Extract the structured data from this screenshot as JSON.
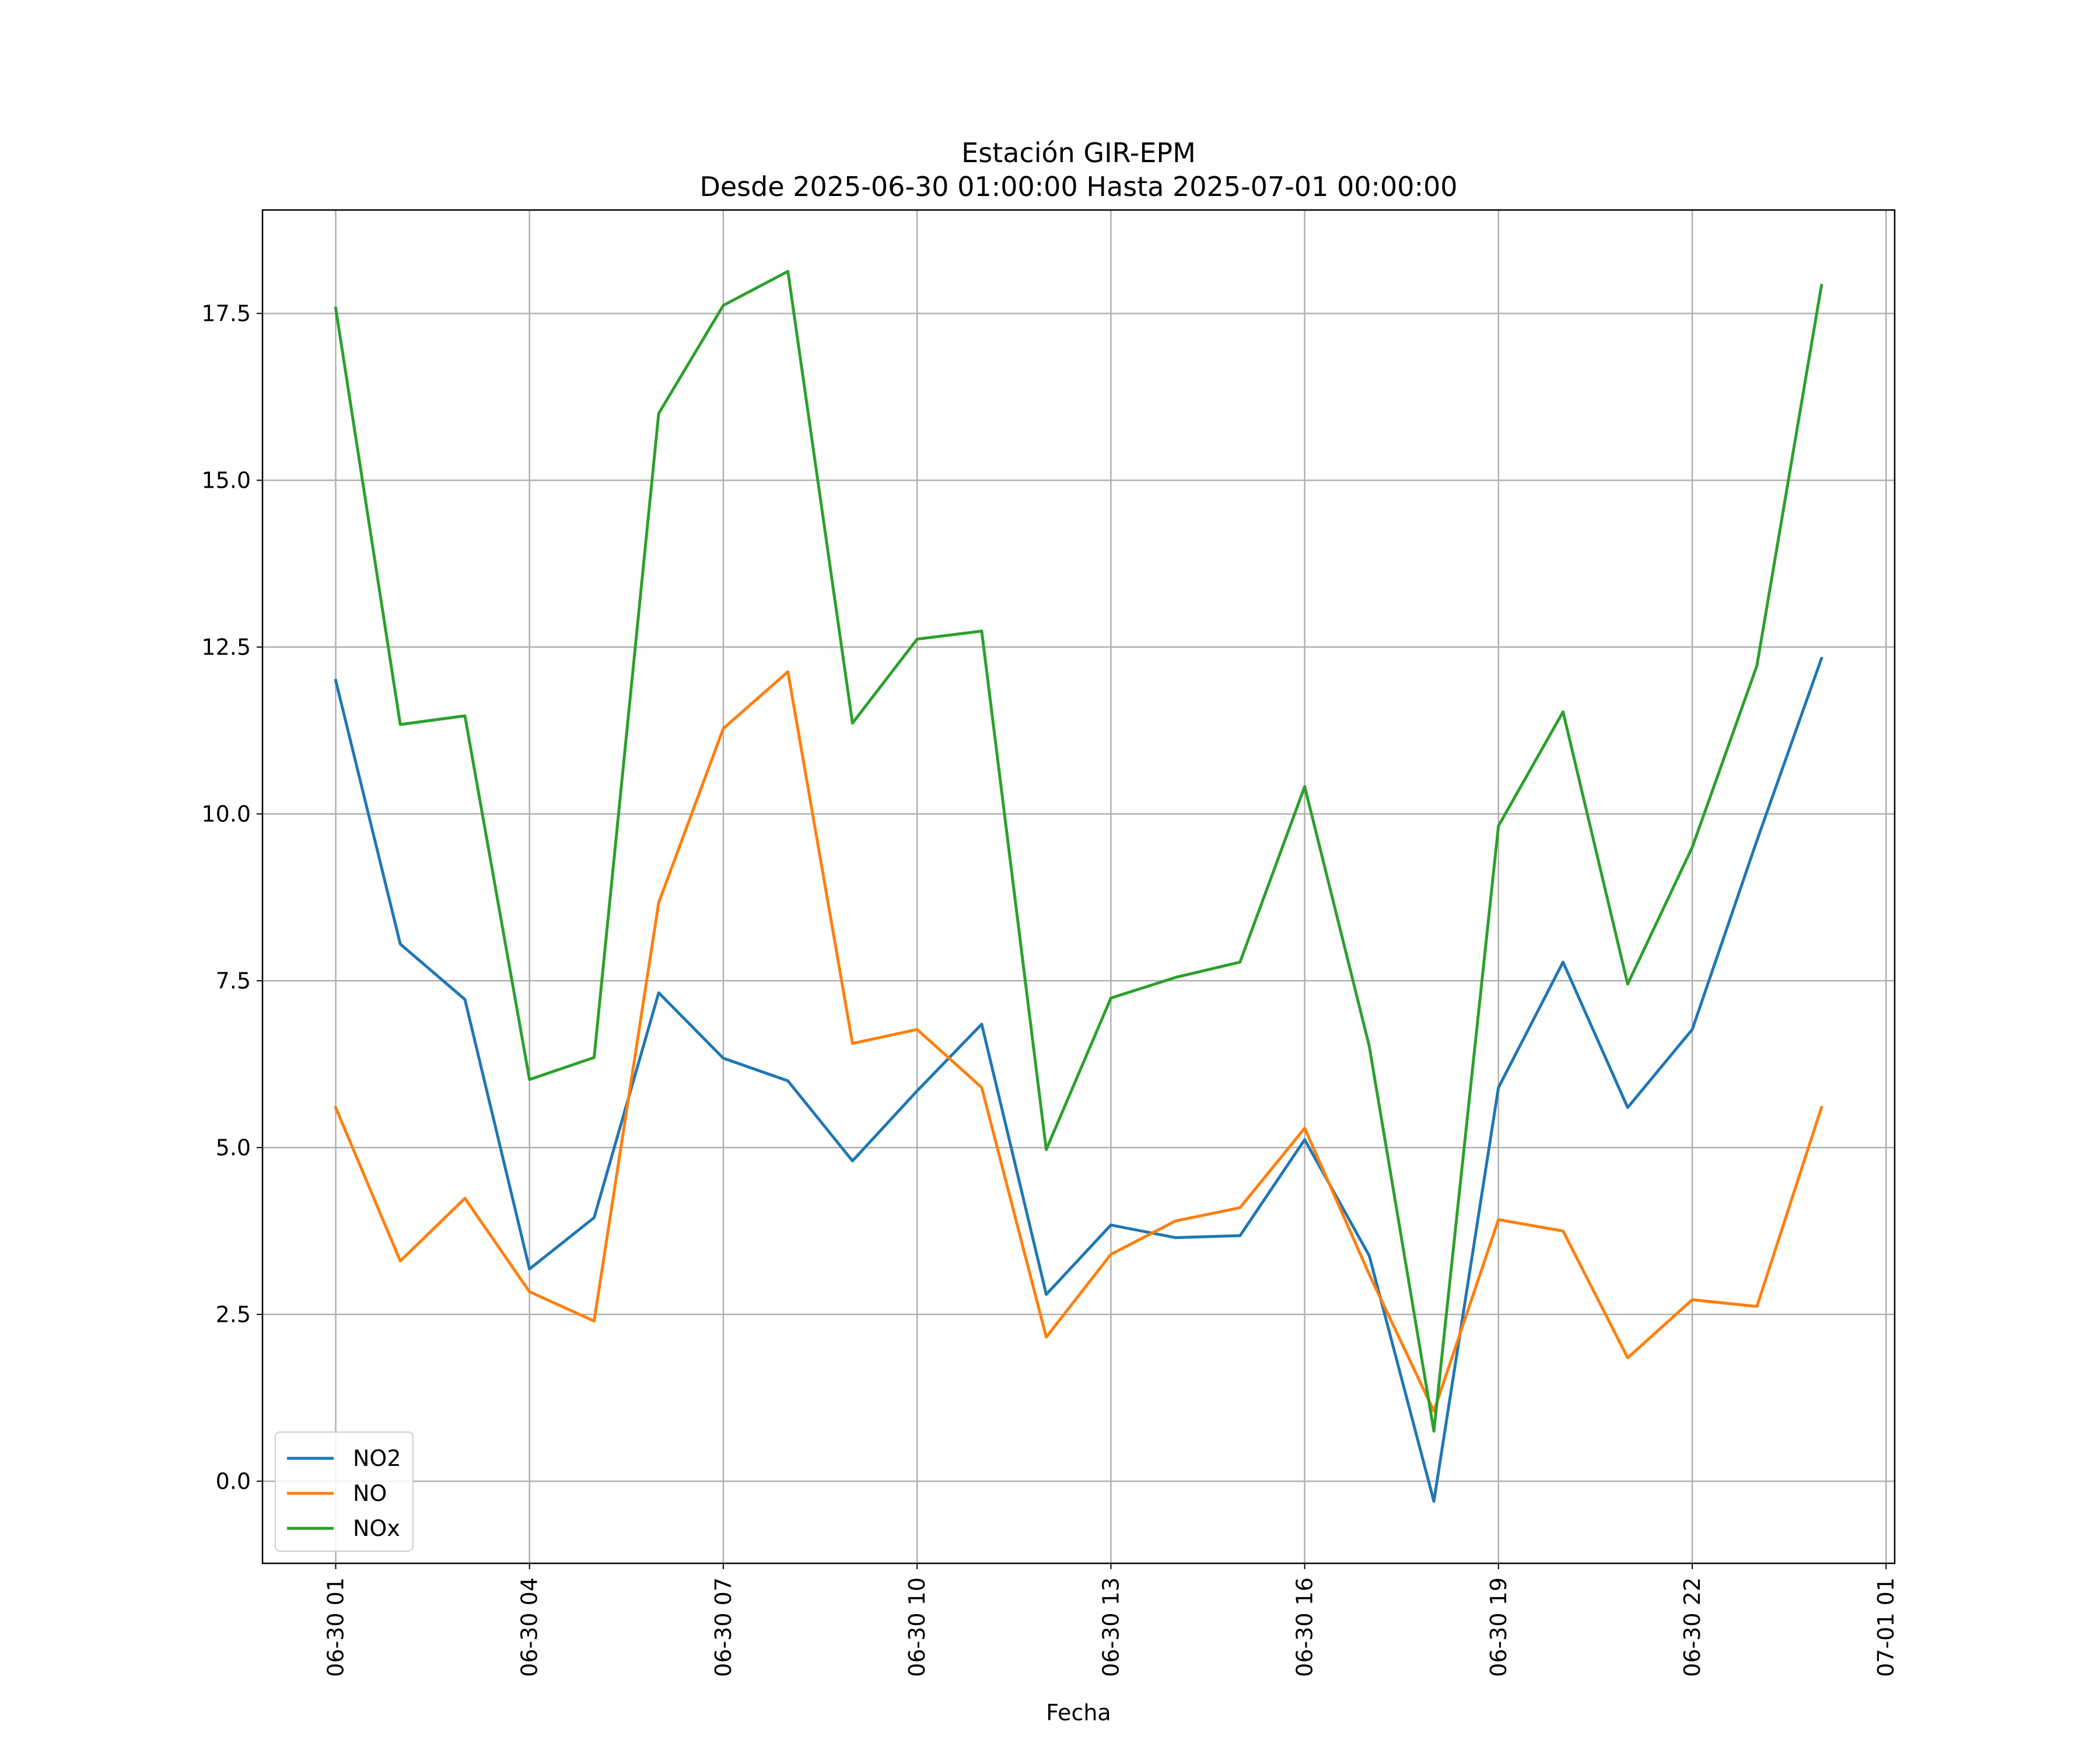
{
  "chart_data": {
    "type": "line",
    "title": "Estación GIR-EPM",
    "subtitle": "Desde 2025-06-30 01:00:00 Hasta 2025-07-01 00:00:00",
    "xlabel": "Fecha",
    "ylabel": "",
    "x": [
      "2025-06-30 01:00",
      "2025-06-30 02:00",
      "2025-06-30 03:00",
      "2025-06-30 04:00",
      "2025-06-30 05:00",
      "2025-06-30 06:00",
      "2025-06-30 07:00",
      "2025-06-30 08:00",
      "2025-06-30 09:00",
      "2025-06-30 10:00",
      "2025-06-30 11:00",
      "2025-06-30 12:00",
      "2025-06-30 13:00",
      "2025-06-30 14:00",
      "2025-06-30 15:00",
      "2025-06-30 16:00",
      "2025-06-30 17:00",
      "2025-06-30 18:00",
      "2025-06-30 19:00",
      "2025-06-30 20:00",
      "2025-06-30 21:00",
      "2025-06-30 22:00",
      "2025-06-30 23:00",
      "2025-07-01 00:00"
    ],
    "x_ticks": [
      {
        "at": "2025-06-30 01:00",
        "label": "06-30 01"
      },
      {
        "at": "2025-06-30 04:00",
        "label": "06-30 04"
      },
      {
        "at": "2025-06-30 07:00",
        "label": "06-30 07"
      },
      {
        "at": "2025-06-30 10:00",
        "label": "06-30 10"
      },
      {
        "at": "2025-06-30 13:00",
        "label": "06-30 13"
      },
      {
        "at": "2025-06-30 16:00",
        "label": "06-30 16"
      },
      {
        "at": "2025-06-30 19:00",
        "label": "06-30 19"
      },
      {
        "at": "2025-06-30 22:00",
        "label": "06-30 22"
      },
      {
        "at": "2025-07-01 01:00",
        "label": "07-01 01"
      }
    ],
    "xlim": [
      "2025-06-29 23:52",
      "2025-07-01 01:08"
    ],
    "y_ticks": [
      0.0,
      2.5,
      5.0,
      7.5,
      10.0,
      12.5,
      15.0,
      17.5
    ],
    "y_tick_labels": [
      "0.0",
      "2.5",
      "5.0",
      "7.5",
      "10.0",
      "12.5",
      "15.0",
      "17.5"
    ],
    "ylim": [
      -1.23,
      19.05
    ],
    "grid": true,
    "legend_position": "lower-left",
    "series": [
      {
        "name": "NO2",
        "color": "#1f77b4",
        "values": [
          12.0,
          8.05,
          7.22,
          3.18,
          3.95,
          7.32,
          6.34,
          6.0,
          4.8,
          5.85,
          6.85,
          2.8,
          3.84,
          3.65,
          3.68,
          5.12,
          3.38,
          -0.3,
          5.9,
          7.78,
          5.6,
          6.77,
          9.6,
          12.33
        ]
      },
      {
        "name": "NO",
        "color": "#ff7f0e",
        "values": [
          5.6,
          3.3,
          4.24,
          2.84,
          2.4,
          8.67,
          11.28,
          12.13,
          6.56,
          6.77,
          5.9,
          2.16,
          3.4,
          3.9,
          4.1,
          5.29,
          3.1,
          1.05,
          3.92,
          3.75,
          1.85,
          2.72,
          2.62,
          5.6
        ]
      },
      {
        "name": "NOx",
        "color": "#2ca02c",
        "values": [
          17.58,
          11.34,
          11.47,
          6.02,
          6.35,
          16.0,
          17.62,
          18.13,
          11.36,
          12.62,
          12.74,
          4.97,
          7.24,
          7.55,
          7.78,
          10.41,
          6.52,
          0.75,
          9.82,
          11.53,
          7.45,
          9.5,
          12.22,
          17.92
        ]
      }
    ]
  }
}
